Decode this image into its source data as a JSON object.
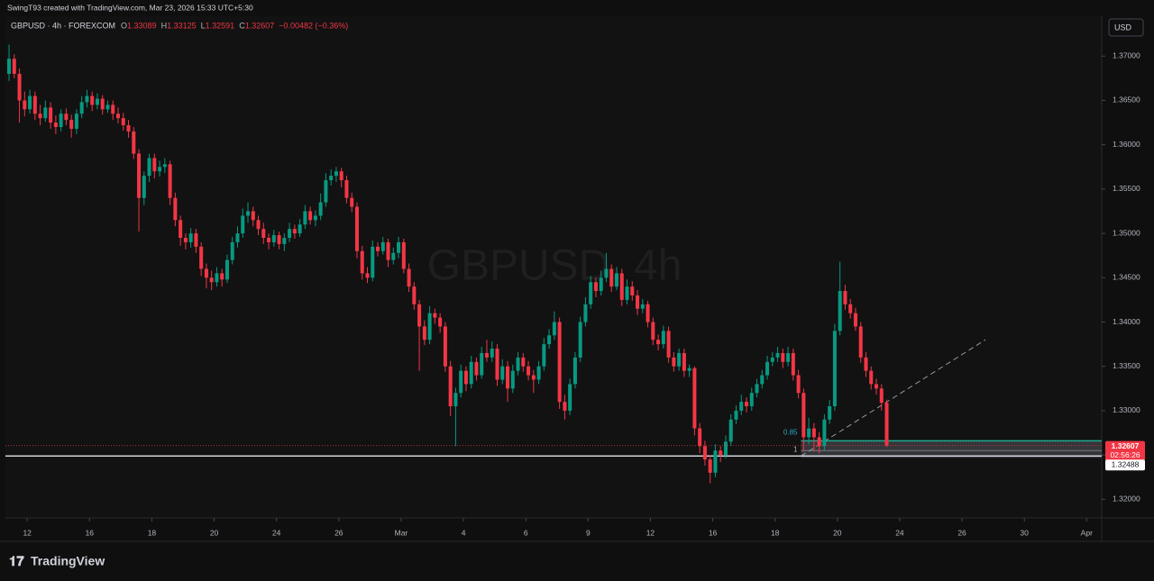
{
  "header": {
    "text": "SwingT93 created with TradingView.com, Mar 23, 2026 15:33 UTC+5:30"
  },
  "legend": {
    "symbol": "GBPUSD · 4h · FOREXCOM",
    "o": "O",
    "h": "H",
    "l": "L",
    "c": "C",
    "change": "−0.00482 (−0.36%)"
  },
  "currency": "USD",
  "brand": "TradingView",
  "chart_data": {
    "type": "candlestick",
    "watermark": "GBPUSD, 4h",
    "up_color": "#089981",
    "down_color": "#f23645",
    "ylim": [
      1.3179,
      1.3745
    ],
    "yticks": [
      {
        "value": 1.32,
        "label": "1.32000"
      },
      {
        "value": 1.325,
        "label": "1.32500"
      },
      {
        "value": 1.33,
        "label": "1.33000"
      },
      {
        "value": 1.335,
        "label": "1.33500"
      },
      {
        "value": 1.34,
        "label": "1.34000"
      },
      {
        "value": 1.345,
        "label": "1.34500"
      },
      {
        "value": 1.35,
        "label": "1.35000"
      },
      {
        "value": 1.355,
        "label": "1.35500"
      },
      {
        "value": 1.36,
        "label": "1.36000"
      },
      {
        "value": 1.365,
        "label": "1.36500"
      },
      {
        "value": 1.37,
        "label": "1.37000"
      }
    ],
    "xlim": [
      -0.7,
      210.4
    ],
    "xticks": [
      {
        "value": 3.5,
        "label": "12"
      },
      {
        "value": 15.5,
        "label": "16"
      },
      {
        "value": 27.5,
        "label": "18"
      },
      {
        "value": 39.5,
        "label": "20"
      },
      {
        "value": 51.5,
        "label": "24"
      },
      {
        "value": 63.5,
        "label": "26"
      },
      {
        "value": 75.5,
        "label": "Mar"
      },
      {
        "value": 87.5,
        "label": "4"
      },
      {
        "value": 99.5,
        "label": "6"
      },
      {
        "value": 111.5,
        "label": "9"
      },
      {
        "value": 123.5,
        "label": "12"
      },
      {
        "value": 135.5,
        "label": "16"
      },
      {
        "value": 147.5,
        "label": "18"
      },
      {
        "value": 159.5,
        "label": "20"
      },
      {
        "value": 171.5,
        "label": "24"
      },
      {
        "value": 183.5,
        "label": "26"
      },
      {
        "value": 195.5,
        "label": "30"
      },
      {
        "value": 207.5,
        "label": "Apr"
      }
    ],
    "price_line": 1.32488,
    "countdown": "02:56:26",
    "fib": [
      {
        "label": "0.85",
        "price": 1.3266
      },
      {
        "label": "1",
        "price": 1.3255
      }
    ],
    "ohlc": [
      [
        1.368,
        1.3713,
        1.3672,
        1.3697
      ],
      [
        1.3697,
        1.3702,
        1.3675,
        1.368
      ],
      [
        1.368,
        1.3686,
        1.3625,
        1.365
      ],
      [
        1.365,
        1.366,
        1.3632,
        1.364
      ],
      [
        1.364,
        1.3662,
        1.3635,
        1.3655
      ],
      [
        1.3655,
        1.366,
        1.3628,
        1.3635
      ],
      [
        1.3635,
        1.3645,
        1.3622,
        1.363
      ],
      [
        1.363,
        1.365,
        1.3626,
        1.3642
      ],
      [
        1.3642,
        1.3648,
        1.3618,
        1.3625
      ],
      [
        1.3625,
        1.3633,
        1.3612,
        1.362
      ],
      [
        1.362,
        1.364,
        1.3615,
        1.3635
      ],
      [
        1.3635,
        1.3641,
        1.3622,
        1.3628
      ],
      [
        1.3628,
        1.3634,
        1.3608,
        1.3618
      ],
      [
        1.3618,
        1.364,
        1.3612,
        1.3635
      ],
      [
        1.3635,
        1.3655,
        1.363,
        1.3648
      ],
      [
        1.3648,
        1.3662,
        1.3642,
        1.3655
      ],
      [
        1.3655,
        1.366,
        1.3638,
        1.3645
      ],
      [
        1.3645,
        1.3658,
        1.364,
        1.3652
      ],
      [
        1.3652,
        1.3656,
        1.3634,
        1.364
      ],
      [
        1.364,
        1.365,
        1.3636,
        1.3645
      ],
      [
        1.3645,
        1.365,
        1.3628,
        1.3635
      ],
      [
        1.3635,
        1.3642,
        1.3624,
        1.363
      ],
      [
        1.363,
        1.3636,
        1.3616,
        1.3622
      ],
      [
        1.3622,
        1.3628,
        1.3608,
        1.3615
      ],
      [
        1.3615,
        1.362,
        1.3584,
        1.359
      ],
      [
        1.359,
        1.3595,
        1.3502,
        1.354
      ],
      [
        1.354,
        1.357,
        1.3532,
        1.3565
      ],
      [
        1.3565,
        1.359,
        1.3558,
        1.3585
      ],
      [
        1.3585,
        1.359,
        1.3562,
        1.357
      ],
      [
        1.357,
        1.3582,
        1.3564,
        1.3575
      ],
      [
        1.3575,
        1.3585,
        1.3568,
        1.3578
      ],
      [
        1.3578,
        1.3582,
        1.3532,
        1.354
      ],
      [
        1.354,
        1.3546,
        1.3508,
        1.3515
      ],
      [
        1.3515,
        1.352,
        1.3486,
        1.3495
      ],
      [
        1.3495,
        1.35,
        1.3482,
        1.349
      ],
      [
        1.349,
        1.3506,
        1.3484,
        1.35
      ],
      [
        1.35,
        1.3505,
        1.3478,
        1.3485
      ],
      [
        1.3485,
        1.349,
        1.3452,
        1.346
      ],
      [
        1.346,
        1.3466,
        1.3438,
        1.345
      ],
      [
        1.345,
        1.3458,
        1.3436,
        1.3445
      ],
      [
        1.3445,
        1.3462,
        1.344,
        1.3455
      ],
      [
        1.3455,
        1.346,
        1.344,
        1.3448
      ],
      [
        1.3448,
        1.3476,
        1.3444,
        1.347
      ],
      [
        1.347,
        1.3496,
        1.3465,
        1.349
      ],
      [
        1.349,
        1.3508,
        1.3484,
        1.35
      ],
      [
        1.35,
        1.3528,
        1.3495,
        1.352
      ],
      [
        1.352,
        1.3535,
        1.3512,
        1.3525
      ],
      [
        1.3525,
        1.353,
        1.3508,
        1.3515
      ],
      [
        1.3515,
        1.352,
        1.3498,
        1.3505
      ],
      [
        1.3505,
        1.3512,
        1.3488,
        1.3495
      ],
      [
        1.3495,
        1.35,
        1.3482,
        1.349
      ],
      [
        1.349,
        1.3504,
        1.3485,
        1.3498
      ],
      [
        1.3498,
        1.3502,
        1.3482,
        1.3488
      ],
      [
        1.3488,
        1.35,
        1.348,
        1.3495
      ],
      [
        1.3495,
        1.3512,
        1.349,
        1.3505
      ],
      [
        1.3505,
        1.351,
        1.3494,
        1.35
      ],
      [
        1.35,
        1.3516,
        1.3496,
        1.351
      ],
      [
        1.351,
        1.3532,
        1.3505,
        1.3525
      ],
      [
        1.3525,
        1.353,
        1.351,
        1.3515
      ],
      [
        1.3515,
        1.3526,
        1.3508,
        1.352
      ],
      [
        1.352,
        1.3545,
        1.3515,
        1.3535
      ],
      [
        1.3535,
        1.3568,
        1.353,
        1.356
      ],
      [
        1.356,
        1.3572,
        1.3554,
        1.3565
      ],
      [
        1.3565,
        1.3575,
        1.3558,
        1.357
      ],
      [
        1.357,
        1.3574,
        1.3552,
        1.356
      ],
      [
        1.356,
        1.3565,
        1.3534,
        1.354
      ],
      [
        1.354,
        1.3546,
        1.3524,
        1.353
      ],
      [
        1.353,
        1.3535,
        1.3472,
        1.348
      ],
      [
        1.348,
        1.3486,
        1.3448,
        1.3455
      ],
      [
        1.3455,
        1.3462,
        1.3444,
        1.345
      ],
      [
        1.345,
        1.3492,
        1.3446,
        1.3485
      ],
      [
        1.3485,
        1.349,
        1.3474,
        1.348
      ],
      [
        1.348,
        1.3496,
        1.3476,
        1.349
      ],
      [
        1.349,
        1.3494,
        1.3462,
        1.347
      ],
      [
        1.347,
        1.3484,
        1.3465,
        1.3478
      ],
      [
        1.3478,
        1.3496,
        1.3472,
        1.349
      ],
      [
        1.349,
        1.3494,
        1.3455,
        1.346
      ],
      [
        1.346,
        1.3466,
        1.3434,
        1.344
      ],
      [
        1.344,
        1.3445,
        1.3414,
        1.342
      ],
      [
        1.342,
        1.3425,
        1.3345,
        1.3395
      ],
      [
        1.3395,
        1.3402,
        1.3374,
        1.338
      ],
      [
        1.338,
        1.3418,
        1.3375,
        1.341
      ],
      [
        1.341,
        1.3415,
        1.3398,
        1.3405
      ],
      [
        1.3405,
        1.341,
        1.3388,
        1.3395
      ],
      [
        1.3395,
        1.34,
        1.3344,
        1.335
      ],
      [
        1.335,
        1.3356,
        1.3294,
        1.3305
      ],
      [
        1.3305,
        1.3326,
        1.326,
        1.332
      ],
      [
        1.332,
        1.3352,
        1.3315,
        1.3345
      ],
      [
        1.3345,
        1.335,
        1.3322,
        1.333
      ],
      [
        1.333,
        1.3362,
        1.3325,
        1.3355
      ],
      [
        1.3355,
        1.336,
        1.3334,
        1.334
      ],
      [
        1.334,
        1.3372,
        1.3336,
        1.3365
      ],
      [
        1.3365,
        1.338,
        1.3355,
        1.336
      ],
      [
        1.336,
        1.3378,
        1.3355,
        1.337
      ],
      [
        1.337,
        1.3375,
        1.3328,
        1.3335
      ],
      [
        1.3335,
        1.3358,
        1.333,
        1.335
      ],
      [
        1.335,
        1.3356,
        1.331,
        1.3325
      ],
      [
        1.3325,
        1.3352,
        1.332,
        1.3345
      ],
      [
        1.3345,
        1.3366,
        1.334,
        1.336
      ],
      [
        1.336,
        1.3365,
        1.3344,
        1.335
      ],
      [
        1.335,
        1.3356,
        1.3334,
        1.334
      ],
      [
        1.334,
        1.3346,
        1.332,
        1.3335
      ],
      [
        1.3335,
        1.3356,
        1.333,
        1.335
      ],
      [
        1.335,
        1.3382,
        1.3345,
        1.3375
      ],
      [
        1.3375,
        1.3392,
        1.337,
        1.3385
      ],
      [
        1.3385,
        1.3412,
        1.338,
        1.34
      ],
      [
        1.34,
        1.3405,
        1.3302,
        1.331
      ],
      [
        1.331,
        1.3318,
        1.329,
        1.33
      ],
      [
        1.33,
        1.3336,
        1.3295,
        1.333
      ],
      [
        1.333,
        1.3366,
        1.3325,
        1.336
      ],
      [
        1.336,
        1.3406,
        1.3355,
        1.34
      ],
      [
        1.34,
        1.3428,
        1.3395,
        1.342
      ],
      [
        1.342,
        1.3452,
        1.3415,
        1.3445
      ],
      [
        1.3445,
        1.345,
        1.3428,
        1.3435
      ],
      [
        1.3435,
        1.3458,
        1.343,
        1.345
      ],
      [
        1.345,
        1.3478,
        1.3445,
        1.346
      ],
      [
        1.346,
        1.3465,
        1.3434,
        1.344
      ],
      [
        1.344,
        1.3462,
        1.3436,
        1.3455
      ],
      [
        1.3455,
        1.346,
        1.3418,
        1.3425
      ],
      [
        1.3425,
        1.3448,
        1.342,
        1.344
      ],
      [
        1.344,
        1.3446,
        1.3424,
        1.343
      ],
      [
        1.343,
        1.3436,
        1.3408,
        1.3415
      ],
      [
        1.3415,
        1.3426,
        1.341,
        1.342
      ],
      [
        1.342,
        1.3424,
        1.3394,
        1.34
      ],
      [
        1.34,
        1.3405,
        1.3374,
        1.338
      ],
      [
        1.338,
        1.3386,
        1.3368,
        1.3375
      ],
      [
        1.3375,
        1.3396,
        1.337,
        1.339
      ],
      [
        1.339,
        1.3395,
        1.3354,
        1.336
      ],
      [
        1.336,
        1.3366,
        1.3344,
        1.335
      ],
      [
        1.335,
        1.337,
        1.3345,
        1.3365
      ],
      [
        1.3365,
        1.337,
        1.3338,
        1.3345
      ],
      [
        1.3345,
        1.3352,
        1.3338,
        1.3348
      ],
      [
        1.3348,
        1.335,
        1.3272,
        1.328
      ],
      [
        1.328,
        1.3286,
        1.3252,
        1.326
      ],
      [
        1.326,
        1.3266,
        1.3238,
        1.3245
      ],
      [
        1.3245,
        1.325,
        1.3218,
        1.323
      ],
      [
        1.323,
        1.3262,
        1.3225,
        1.3255
      ],
      [
        1.3255,
        1.326,
        1.3242,
        1.325
      ],
      [
        1.325,
        1.3272,
        1.3246,
        1.3265
      ],
      [
        1.3265,
        1.3296,
        1.326,
        1.329
      ],
      [
        1.329,
        1.3306,
        1.3285,
        1.33
      ],
      [
        1.33,
        1.3318,
        1.3295,
        1.331
      ],
      [
        1.331,
        1.3315,
        1.3298,
        1.3305
      ],
      [
        1.3305,
        1.3326,
        1.33,
        1.332
      ],
      [
        1.332,
        1.3336,
        1.3315,
        1.333
      ],
      [
        1.333,
        1.3346,
        1.3325,
        1.334
      ],
      [
        1.334,
        1.3362,
        1.3335,
        1.3355
      ],
      [
        1.3355,
        1.3366,
        1.335,
        1.336
      ],
      [
        1.336,
        1.3372,
        1.3355,
        1.3365
      ],
      [
        1.3365,
        1.337,
        1.3348,
        1.3355
      ],
      [
        1.3355,
        1.3372,
        1.335,
        1.3365
      ],
      [
        1.3365,
        1.337,
        1.3334,
        1.334
      ],
      [
        1.334,
        1.3346,
        1.3314,
        1.332
      ],
      [
        1.332,
        1.3325,
        1.3254,
        1.327
      ],
      [
        1.327,
        1.3292,
        1.3262,
        1.328
      ],
      [
        1.328,
        1.3286,
        1.3254,
        1.327
      ],
      [
        1.327,
        1.3276,
        1.3252,
        1.326
      ],
      [
        1.326,
        1.3296,
        1.3255,
        1.329
      ],
      [
        1.329,
        1.3312,
        1.3285,
        1.3305
      ],
      [
        1.3305,
        1.3398,
        1.33,
        1.339
      ],
      [
        1.339,
        1.3468,
        1.3385,
        1.3435
      ],
      [
        1.3435,
        1.3442,
        1.3414,
        1.342
      ],
      [
        1.342,
        1.3426,
        1.3404,
        1.341
      ],
      [
        1.341,
        1.3416,
        1.339,
        1.3395
      ],
      [
        1.3395,
        1.34,
        1.3354,
        1.336
      ],
      [
        1.336,
        1.3366,
        1.3338,
        1.3345
      ],
      [
        1.3345,
        1.335,
        1.3324,
        1.333
      ],
      [
        1.333,
        1.3336,
        1.3318,
        1.3325
      ],
      [
        1.3325,
        1.333,
        1.33,
        1.33089
      ],
      [
        1.33089,
        1.33125,
        1.32591,
        1.32607
      ]
    ]
  }
}
